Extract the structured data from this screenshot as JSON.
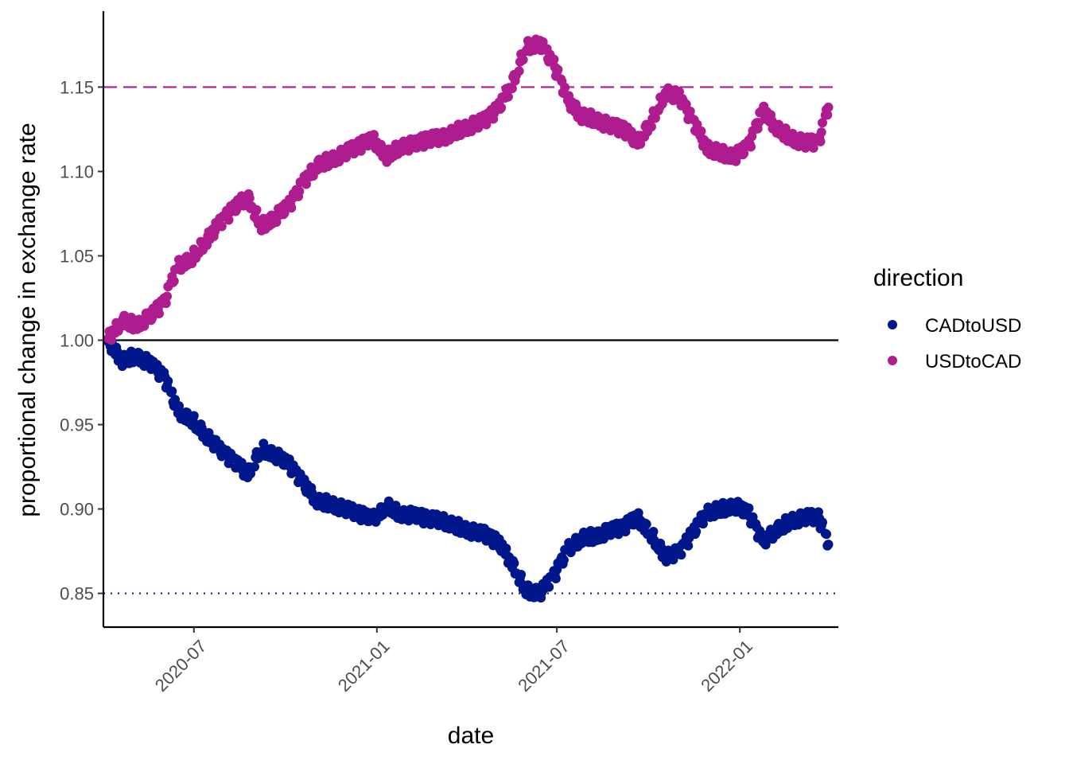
{
  "chart_data": {
    "type": "scatter",
    "title": "",
    "xlabel": "date",
    "ylabel": "proportional change in exchange rate",
    "x_ticks": [
      "2020-07",
      "2021-01",
      "2021-07",
      "2022-01"
    ],
    "y_ticks": [
      "0.85",
      "0.90",
      "0.95",
      "1.00",
      "1.05",
      "1.10",
      "1.15"
    ],
    "xlim": [
      "2020-04-01",
      "2022-04-10"
    ],
    "ylim": [
      0.83,
      1.195
    ],
    "grid": false,
    "legend": {
      "title": "direction",
      "position": "right"
    },
    "reference_lines": [
      {
        "y": 1.0,
        "style": "solid",
        "color": "#000000"
      },
      {
        "y": 1.15,
        "style": "dashed",
        "color": "#AE1C8F"
      },
      {
        "y": 0.85,
        "style": "dotted",
        "color": "#1F2A8C"
      }
    ],
    "series": [
      {
        "name": "CADtoUSD",
        "color": "#00178C",
        "x": [
          "2020-04-06",
          "2020-04-20",
          "2020-05-04",
          "2020-05-18",
          "2020-06-01",
          "2020-06-15",
          "2020-06-29",
          "2020-07-13",
          "2020-07-27",
          "2020-08-10",
          "2020-08-24",
          "2020-09-07",
          "2020-09-21",
          "2020-10-05",
          "2020-10-19",
          "2020-11-02",
          "2020-11-16",
          "2020-11-30",
          "2020-12-14",
          "2020-12-28",
          "2021-01-11",
          "2021-01-25",
          "2021-02-08",
          "2021-02-22",
          "2021-03-08",
          "2021-03-22",
          "2021-04-05",
          "2021-04-19",
          "2021-05-03",
          "2021-05-17",
          "2021-05-31",
          "2021-06-14",
          "2021-06-28",
          "2021-07-12",
          "2021-07-26",
          "2021-08-09",
          "2021-08-23",
          "2021-09-06",
          "2021-09-20",
          "2021-10-04",
          "2021-10-18",
          "2021-11-01",
          "2021-11-15",
          "2021-11-29",
          "2021-12-13",
          "2021-12-27",
          "2022-01-10",
          "2022-01-24",
          "2022-02-07",
          "2022-02-21",
          "2022-03-07",
          "2022-03-21",
          "2022-03-31"
        ],
        "y": [
          0.999,
          0.988,
          0.991,
          0.986,
          0.978,
          0.958,
          0.953,
          0.944,
          0.935,
          0.928,
          0.921,
          0.936,
          0.932,
          0.926,
          0.915,
          0.905,
          0.903,
          0.9,
          0.897,
          0.894,
          0.902,
          0.897,
          0.896,
          0.894,
          0.893,
          0.89,
          0.887,
          0.885,
          0.88,
          0.868,
          0.852,
          0.85,
          0.86,
          0.876,
          0.883,
          0.884,
          0.887,
          0.889,
          0.895,
          0.885,
          0.872,
          0.874,
          0.886,
          0.898,
          0.9,
          0.902,
          0.897,
          0.88,
          0.888,
          0.893,
          0.895,
          0.895,
          0.879
        ]
      },
      {
        "name": "USDtoCAD",
        "color": "#AE1C8F",
        "x": [
          "2020-04-06",
          "2020-04-20",
          "2020-05-04",
          "2020-05-18",
          "2020-06-01",
          "2020-06-15",
          "2020-06-29",
          "2020-07-13",
          "2020-07-27",
          "2020-08-10",
          "2020-08-24",
          "2020-09-07",
          "2020-09-21",
          "2020-10-05",
          "2020-10-19",
          "2020-11-02",
          "2020-11-16",
          "2020-11-30",
          "2020-12-14",
          "2020-12-28",
          "2021-01-11",
          "2021-01-25",
          "2021-02-08",
          "2021-02-22",
          "2021-03-08",
          "2021-03-22",
          "2021-04-05",
          "2021-04-19",
          "2021-05-03",
          "2021-05-17",
          "2021-05-31",
          "2021-06-14",
          "2021-06-28",
          "2021-07-12",
          "2021-07-26",
          "2021-08-09",
          "2021-08-23",
          "2021-09-06",
          "2021-09-20",
          "2021-10-04",
          "2021-10-18",
          "2021-11-01",
          "2021-11-15",
          "2021-11-29",
          "2021-12-13",
          "2021-12-27",
          "2022-01-10",
          "2022-01-24",
          "2022-02-07",
          "2022-02-21",
          "2022-03-07",
          "2022-03-21",
          "2022-03-31"
        ],
        "y": [
          1.001,
          1.012,
          1.009,
          1.014,
          1.022,
          1.044,
          1.049,
          1.059,
          1.069,
          1.078,
          1.085,
          1.068,
          1.073,
          1.08,
          1.093,
          1.104,
          1.107,
          1.111,
          1.115,
          1.119,
          1.109,
          1.115,
          1.116,
          1.119,
          1.12,
          1.124,
          1.127,
          1.13,
          1.137,
          1.152,
          1.174,
          1.176,
          1.163,
          1.142,
          1.133,
          1.131,
          1.127,
          1.125,
          1.117,
          1.13,
          1.147,
          1.144,
          1.129,
          1.114,
          1.111,
          1.109,
          1.115,
          1.136,
          1.126,
          1.12,
          1.117,
          1.117,
          1.138
        ]
      }
    ]
  }
}
